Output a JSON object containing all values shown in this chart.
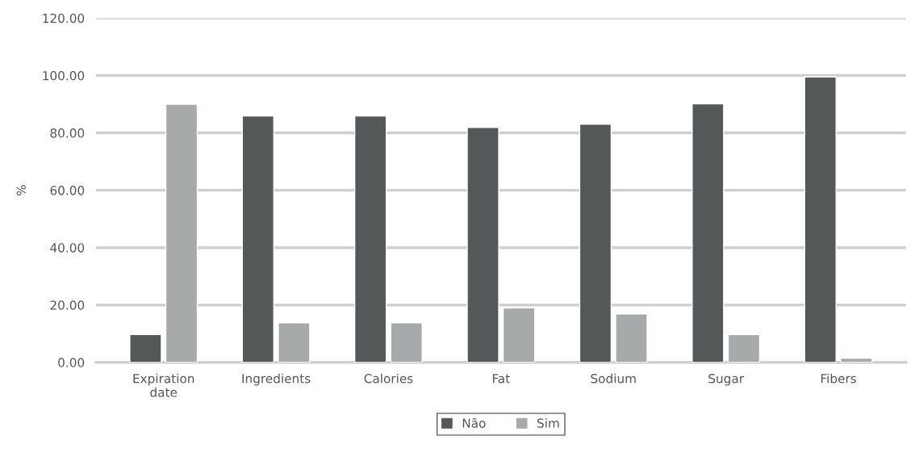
{
  "chart_data": {
    "type": "bar",
    "ylabel": "%",
    "categories": [
      "Expiration\ndate",
      "Ingredients",
      "Calories",
      "Fat",
      "Sodium",
      "Sugar",
      "Fibers"
    ],
    "series": [
      {
        "name": "Não",
        "color": "#555859",
        "values": [
          9.7,
          85.9,
          85.9,
          81.9,
          83.0,
          90.1,
          99.5
        ]
      },
      {
        "name": "Sim",
        "color": "#a7aaab",
        "values": [
          90.0,
          13.8,
          13.8,
          19.0,
          16.9,
          9.7,
          1.5
        ]
      }
    ],
    "ylim": [
      0,
      120
    ],
    "yticks": [
      {
        "value": 0,
        "label": "0.00"
      },
      {
        "value": 20,
        "label": "20.00"
      },
      {
        "value": 40,
        "label": "40.00"
      },
      {
        "value": 60,
        "label": "60.00"
      },
      {
        "value": 80,
        "label": "80.00"
      },
      {
        "value": 100,
        "label": "100.00"
      },
      {
        "value": 120,
        "label": "120.00"
      }
    ],
    "grid": "y",
    "legend": "bottom"
  }
}
